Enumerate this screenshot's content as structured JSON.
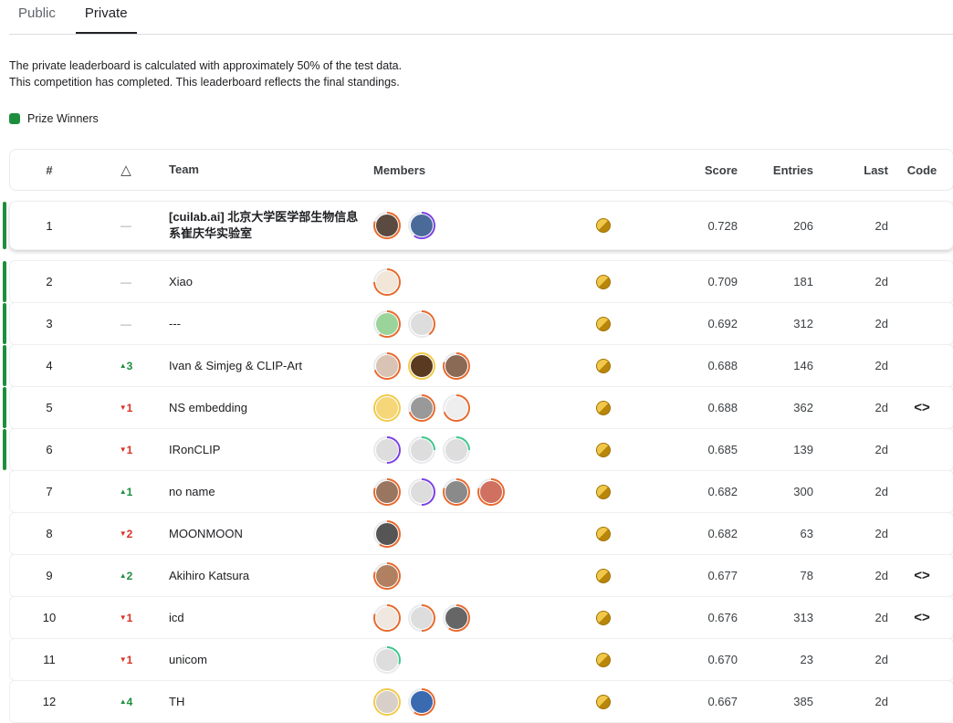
{
  "tabs": [
    {
      "label": "Public",
      "active": false
    },
    {
      "label": "Private",
      "active": true
    }
  ],
  "description": [
    "The private leaderboard is calculated with approximately 50% of the test data.",
    "This competition has completed. This leaderboard reflects the final standings."
  ],
  "legend": {
    "label": "Prize Winners",
    "color": "#1e8e3e"
  },
  "headers": {
    "rank": "#",
    "delta": "△",
    "team": "Team",
    "members": "Members",
    "score": "Score",
    "entries": "Entries",
    "last": "Last",
    "code": "Code"
  },
  "tier_colors": {
    "orange": "#e8692d",
    "purple": "#7b3fe4",
    "green": "#3cc68a",
    "gold": "#f1ca4b"
  },
  "rows": [
    {
      "rank": "1",
      "delta": "—",
      "dir": "none",
      "team": "[cuilab.ai] 北京大学医学部生物信息系崔庆华实验室",
      "prize": true,
      "score": "0.728",
      "entries": "206",
      "last": "2d",
      "code": "",
      "members": [
        [
          "orange",
          0.8,
          "#5a4a40"
        ],
        [
          "purple",
          0.6,
          "#4a6a9a"
        ]
      ]
    },
    {
      "rank": "2",
      "delta": "—",
      "dir": "none",
      "team": "Xiao",
      "prize": true,
      "score": "0.709",
      "entries": "181",
      "last": "2d",
      "code": "",
      "members": [
        [
          "orange",
          0.75,
          "#f2e6d8"
        ]
      ]
    },
    {
      "rank": "3",
      "delta": "—",
      "dir": "none",
      "team": "---",
      "prize": true,
      "score": "0.692",
      "entries": "312",
      "last": "2d",
      "code": "",
      "members": [
        [
          "orange",
          0.6,
          "#9bd49b"
        ],
        [
          "orange",
          0.4,
          "#ddd"
        ]
      ]
    },
    {
      "rank": "4",
      "delta": "3",
      "dir": "up",
      "team": "Ivan & Simjeg & CLIP-Art",
      "prize": true,
      "score": "0.688",
      "entries": "146",
      "last": "2d",
      "code": "",
      "members": [
        [
          "orange",
          0.7,
          "#d9c3b5"
        ],
        [
          "gold",
          1,
          "#5a3a20"
        ],
        [
          "orange",
          0.8,
          "#8a6a55"
        ]
      ]
    },
    {
      "rank": "5",
      "delta": "1",
      "dir": "down",
      "team": "NS embedding",
      "prize": true,
      "score": "0.688",
      "entries": "362",
      "last": "2d",
      "code": "<>",
      "members": [
        [
          "gold",
          1,
          "#f5d77a"
        ],
        [
          "orange",
          0.7,
          "#999"
        ],
        [
          "orange",
          0.7,
          "#eee"
        ]
      ]
    },
    {
      "rank": "6",
      "delta": "1",
      "dir": "down",
      "team": "IRonCLIP",
      "prize": true,
      "score": "0.685",
      "entries": "139",
      "last": "2d",
      "code": "",
      "members": [
        [
          "purple",
          0.5,
          "#ddd"
        ],
        [
          "green",
          0.25,
          "#ddd"
        ],
        [
          "green",
          0.25,
          "#ddd"
        ]
      ]
    },
    {
      "rank": "7",
      "delta": "1",
      "dir": "up",
      "team": "no name",
      "prize": false,
      "score": "0.682",
      "entries": "300",
      "last": "2d",
      "code": "",
      "members": [
        [
          "orange",
          0.8,
          "#9a7560"
        ],
        [
          "purple",
          0.5,
          "#ddd"
        ],
        [
          "orange",
          0.8,
          "#8a8a8a"
        ],
        [
          "orange",
          0.8,
          "#d07060"
        ]
      ]
    },
    {
      "rank": "8",
      "delta": "2",
      "dir": "down",
      "team": "MOONMOON",
      "prize": false,
      "score": "0.682",
      "entries": "63",
      "last": "2d",
      "code": "",
      "members": [
        [
          "orange",
          0.6,
          "#555"
        ]
      ]
    },
    {
      "rank": "9",
      "delta": "2",
      "dir": "up",
      "team": "Akihiro Katsura",
      "prize": false,
      "score": "0.677",
      "entries": "78",
      "last": "2d",
      "code": "<>",
      "members": [
        [
          "orange",
          0.8,
          "#b08060"
        ]
      ]
    },
    {
      "rank": "10",
      "delta": "1",
      "dir": "down",
      "team": "icd",
      "prize": false,
      "score": "0.676",
      "entries": "313",
      "last": "2d",
      "code": "<>",
      "members": [
        [
          "orange",
          0.8,
          "#f0e8e0"
        ],
        [
          "orange",
          0.5,
          "#ddd"
        ],
        [
          "orange",
          0.6,
          "#666"
        ]
      ]
    },
    {
      "rank": "11",
      "delta": "1",
      "dir": "down",
      "team": "unicom",
      "prize": false,
      "score": "0.670",
      "entries": "23",
      "last": "2d",
      "code": "",
      "members": [
        [
          "green",
          0.3,
          "#ddd"
        ]
      ]
    },
    {
      "rank": "12",
      "delta": "4",
      "dir": "up",
      "team": "TH",
      "prize": false,
      "score": "0.667",
      "entries": "385",
      "last": "2d",
      "code": "",
      "members": [
        [
          "gold",
          1,
          "#d8d0c8"
        ],
        [
          "orange",
          0.6,
          "#3a6ab0"
        ]
      ]
    }
  ]
}
